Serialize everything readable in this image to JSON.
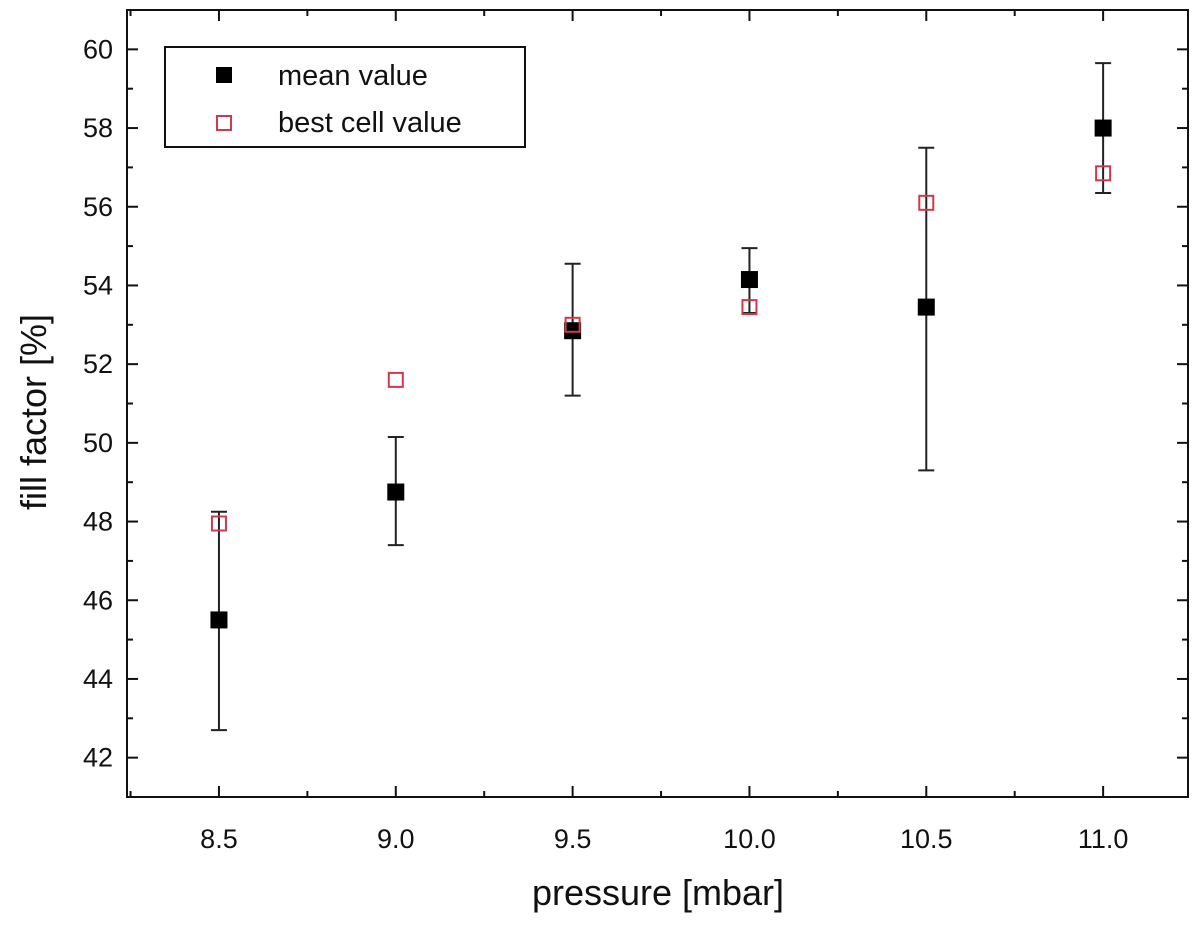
{
  "chart_data": {
    "type": "scatter",
    "xlabel": "pressure [mbar]",
    "ylabel": "fill factor [%]",
    "xlim": [
      8.24,
      11.24
    ],
    "ylim": [
      41.0,
      61.0
    ],
    "x_ticks": [
      "8.5",
      "9.0",
      "9.5",
      "10.0",
      "10.5",
      "11.0"
    ],
    "y_ticks": [
      "42",
      "44",
      "46",
      "48",
      "50",
      "52",
      "54",
      "56",
      "58",
      "60"
    ],
    "grid": false,
    "legend_position": "top-left",
    "error_bars": "mean value series, vertical, asymmetric",
    "series": [
      {
        "name": "mean value",
        "marker": "filled-square",
        "color": "#000000",
        "points": [
          {
            "x": 8.5,
            "y": 45.5,
            "err_low": 42.7,
            "err_high": 48.25
          },
          {
            "x": 9.0,
            "y": 48.75,
            "err_low": 47.4,
            "err_high": 50.15
          },
          {
            "x": 9.5,
            "y": 52.85,
            "err_low": 51.2,
            "err_high": 54.55
          },
          {
            "x": 10.0,
            "y": 54.15,
            "err_low": 53.3,
            "err_high": 54.95
          },
          {
            "x": 10.5,
            "y": 53.45,
            "err_low": 49.3,
            "err_high": 57.5
          },
          {
            "x": 11.0,
            "y": 58.0,
            "err_low": 56.35,
            "err_high": 59.65
          }
        ]
      },
      {
        "name": "best cell value",
        "marker": "open-square",
        "color": "#d2384a",
        "points": [
          {
            "x": 8.5,
            "y": 47.95
          },
          {
            "x": 9.0,
            "y": 51.6
          },
          {
            "x": 9.5,
            "y": 53.0
          },
          {
            "x": 10.0,
            "y": 53.45
          },
          {
            "x": 10.5,
            "y": 56.1
          },
          {
            "x": 11.0,
            "y": 56.85
          }
        ]
      }
    ]
  }
}
